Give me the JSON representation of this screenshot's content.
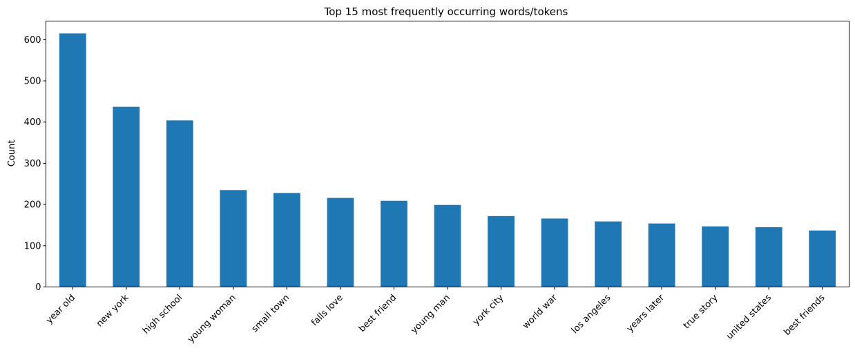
{
  "chart_data": {
    "type": "bar",
    "title": "Top 15 most frequently occurring words/tokens",
    "xlabel": "",
    "ylabel": "Count",
    "categories": [
      "year old",
      "new york",
      "high school",
      "young woman",
      "small town",
      "falls love",
      "best friend",
      "young man",
      "york city",
      "world war",
      "los angeles",
      "years later",
      "true story",
      "united states",
      "best friends"
    ],
    "values": [
      615,
      437,
      404,
      235,
      228,
      216,
      209,
      199,
      172,
      166,
      159,
      154,
      147,
      145,
      137
    ],
    "ylim": [
      0,
      645
    ],
    "yticks": [
      0,
      100,
      200,
      300,
      400,
      500,
      600
    ],
    "bar_color": "#1f77b4",
    "grid": false,
    "legend": "none"
  }
}
